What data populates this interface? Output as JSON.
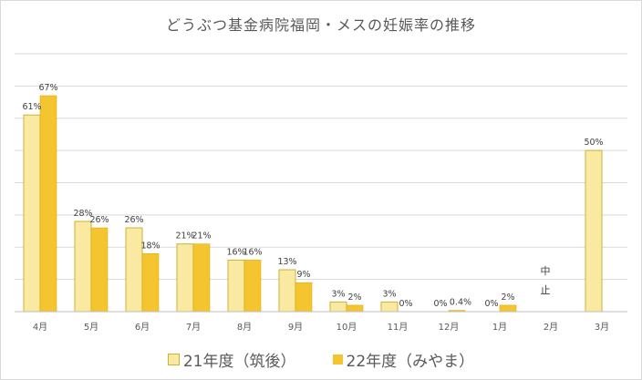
{
  "chart_data": {
    "type": "bar",
    "title": "どうぶつ基金病院福岡・メスの妊娠率の推移",
    "categories": [
      "4月",
      "5月",
      "6月",
      "7月",
      "8月",
      "9月",
      "10月",
      "11月",
      "12月",
      "1月",
      "2月",
      "3月"
    ],
    "series": [
      {
        "name": "21年度（筑後）",
        "color": "#fae9a0",
        "values": [
          61,
          28,
          26,
          21,
          16,
          13,
          3,
          3,
          0,
          0,
          null,
          50
        ],
        "labels": [
          "61%",
          "28%",
          "26%",
          "21%",
          "16%",
          "13%",
          "3%",
          "3%",
          "0%",
          "0%",
          "",
          "50%"
        ]
      },
      {
        "name": "22年度（みやま）",
        "color": "#f5c531",
        "values": [
          67,
          26,
          18,
          21,
          16,
          9,
          2,
          0,
          0.4,
          2,
          null,
          null
        ],
        "labels": [
          "67%",
          "26%",
          "18%",
          "21%",
          "16%",
          "9%",
          "2%",
          "0%",
          "0.4%",
          "2%",
          "",
          ""
        ]
      }
    ],
    "annotations": [
      {
        "category": "2月",
        "text": [
          "中",
          "止"
        ]
      }
    ],
    "ylim": [
      0,
      80
    ],
    "grid": true,
    "legend_position": "bottom"
  }
}
